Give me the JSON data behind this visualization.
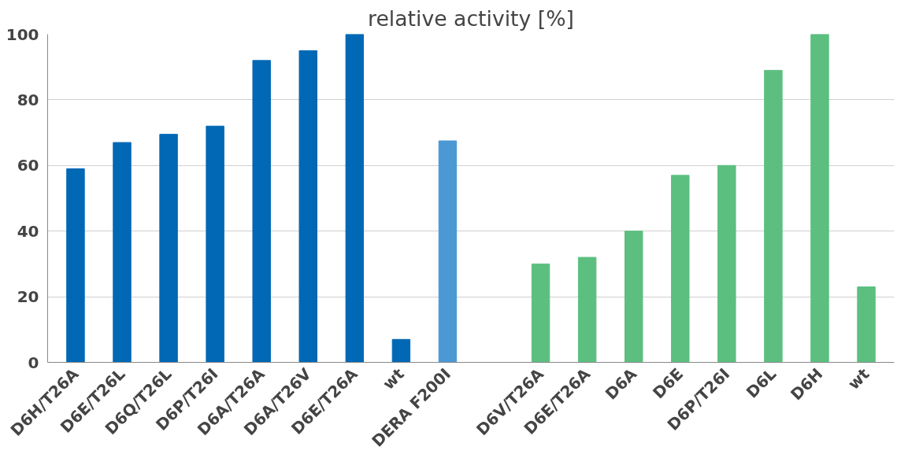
{
  "chart_data": {
    "type": "bar",
    "title": "relative activity [%]",
    "categories": [
      "D6H/T26A",
      "D6E/T26L",
      "D6Q/T26L",
      "D6P/T26I",
      "D6A/T26A",
      "D6A/T26V",
      "D6E/T26A",
      "wt",
      "DERA F200I",
      null,
      "D6V/T26A",
      "D6E/T26A",
      "D6A",
      "D6E",
      "D6P/T26I",
      "D6L",
      "D6H",
      "wt"
    ],
    "values": [
      59,
      67,
      69.5,
      72,
      92,
      95,
      100,
      7,
      67.5,
      null,
      30,
      32,
      40,
      57,
      60,
      89,
      100,
      23
    ],
    "colors": [
      "#0068b5",
      "#0068b5",
      "#0068b5",
      "#0068b5",
      "#0068b5",
      "#0068b5",
      "#0068b5",
      "#0068b5",
      "#4a98d4",
      null,
      "#5cbf80",
      "#5cbf80",
      "#5cbf80",
      "#5cbf80",
      "#5cbf80",
      "#5cbf80",
      "#5cbf80",
      "#5cbf80"
    ],
    "ylim": [
      0,
      100
    ],
    "yticks": [
      0,
      20,
      40,
      60,
      80,
      100
    ],
    "grid": "y"
  }
}
